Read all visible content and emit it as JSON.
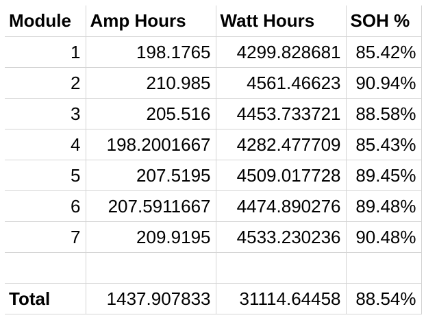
{
  "sheet": {
    "headers": [
      "Module",
      "Amp Hours",
      "Watt Hours",
      "SOH %"
    ],
    "rows": [
      [
        "1",
        "198.1765",
        "4299.828681",
        "85.42%"
      ],
      [
        "2",
        "210.985",
        "4561.46623",
        "90.94%"
      ],
      [
        "3",
        "205.516",
        "4453.733721",
        "88.58%"
      ],
      [
        "4",
        "198.2001667",
        "4282.477709",
        "85.43%"
      ],
      [
        "5",
        "207.5195",
        "4509.017728",
        "89.45%"
      ],
      [
        "6",
        "207.5911667",
        "4474.890276",
        "89.48%"
      ],
      [
        "7",
        "209.9195",
        "4533.230236",
        "90.48%"
      ]
    ],
    "blank": [
      "",
      "",
      "",
      ""
    ],
    "total": [
      "Total",
      "1437.907833",
      "31114.64458",
      "88.54%"
    ]
  }
}
